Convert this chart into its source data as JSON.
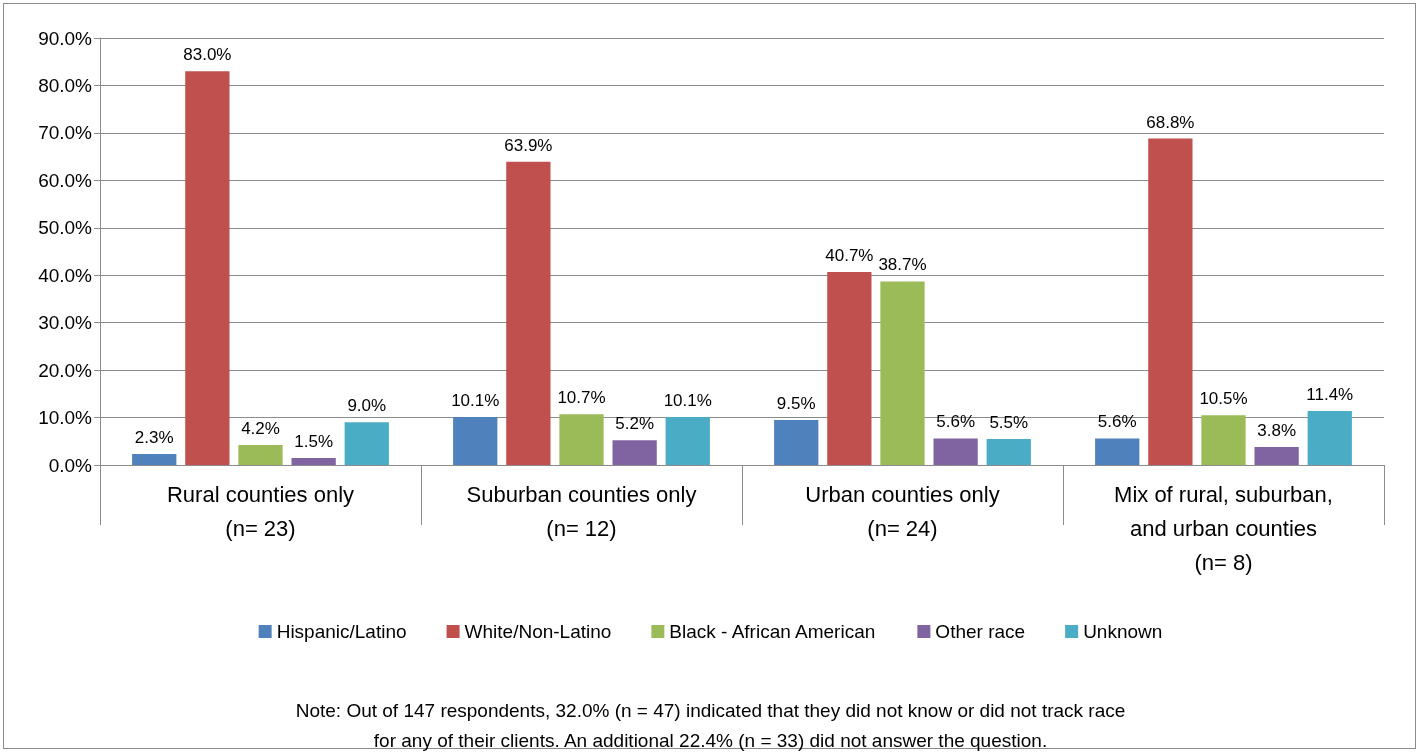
{
  "chart_data": {
    "type": "bar",
    "categories": [
      "Rural counties only\n(n= 23)",
      "Suburban counties only\n(n= 12)",
      "Urban counties only\n(n= 24)",
      "Mix of rural, suburban,\nand urban counties\n(n= 8)"
    ],
    "series": [
      {
        "name": "Hispanic/Latino",
        "color": "#4f81bd",
        "values": [
          2.3,
          10.1,
          9.5,
          5.6
        ],
        "value_labels": [
          "2.3%",
          "10.1%",
          "9.5%",
          "5.6%"
        ]
      },
      {
        "name": "White/Non-Latino",
        "color": "#c0504d",
        "values": [
          83.0,
          63.9,
          40.7,
          68.8
        ],
        "value_labels": [
          "83.0%",
          "63.9%",
          "40.7%",
          "68.8%"
        ]
      },
      {
        "name": "Black - African American",
        "color": "#9bbb59",
        "values": [
          4.2,
          10.7,
          38.7,
          10.5
        ],
        "value_labels": [
          "4.2%",
          "10.7%",
          "38.7%",
          "10.5%"
        ]
      },
      {
        "name": "Other race",
        "color": "#8064a2",
        "values": [
          1.5,
          5.2,
          5.6,
          3.8
        ],
        "value_labels": [
          "1.5%",
          "5.2%",
          "5.6%",
          "3.8%"
        ]
      },
      {
        "name": "Unknown",
        "color": "#4bacc6",
        "values": [
          9.0,
          10.1,
          5.5,
          11.4
        ],
        "value_labels": [
          "9.0%",
          "10.1%",
          "5.5%",
          "11.4%"
        ]
      }
    ],
    "ylim": [
      0,
      90
    ],
    "yticks": [
      {
        "value": 0,
        "label": "0.0%"
      },
      {
        "value": 10,
        "label": "10.0%"
      },
      {
        "value": 20,
        "label": "20.0%"
      },
      {
        "value": 30,
        "label": "30.0%"
      },
      {
        "value": 40,
        "label": "40.0%"
      },
      {
        "value": 50,
        "label": "50.0%"
      },
      {
        "value": 60,
        "label": "60.0%"
      },
      {
        "value": 70,
        "label": "70.0%"
      },
      {
        "value": 80,
        "label": "80.0%"
      },
      {
        "value": 90,
        "label": "90.0%"
      }
    ],
    "grid": "y",
    "legend": "bottom",
    "annotations": [
      "Note: Out of 147 respondents, 32.0% (n = 47) indicated that they did not know or did not track race\nfor any of their clients. An additional 22.4% (n = 33) did not answer the question."
    ]
  }
}
